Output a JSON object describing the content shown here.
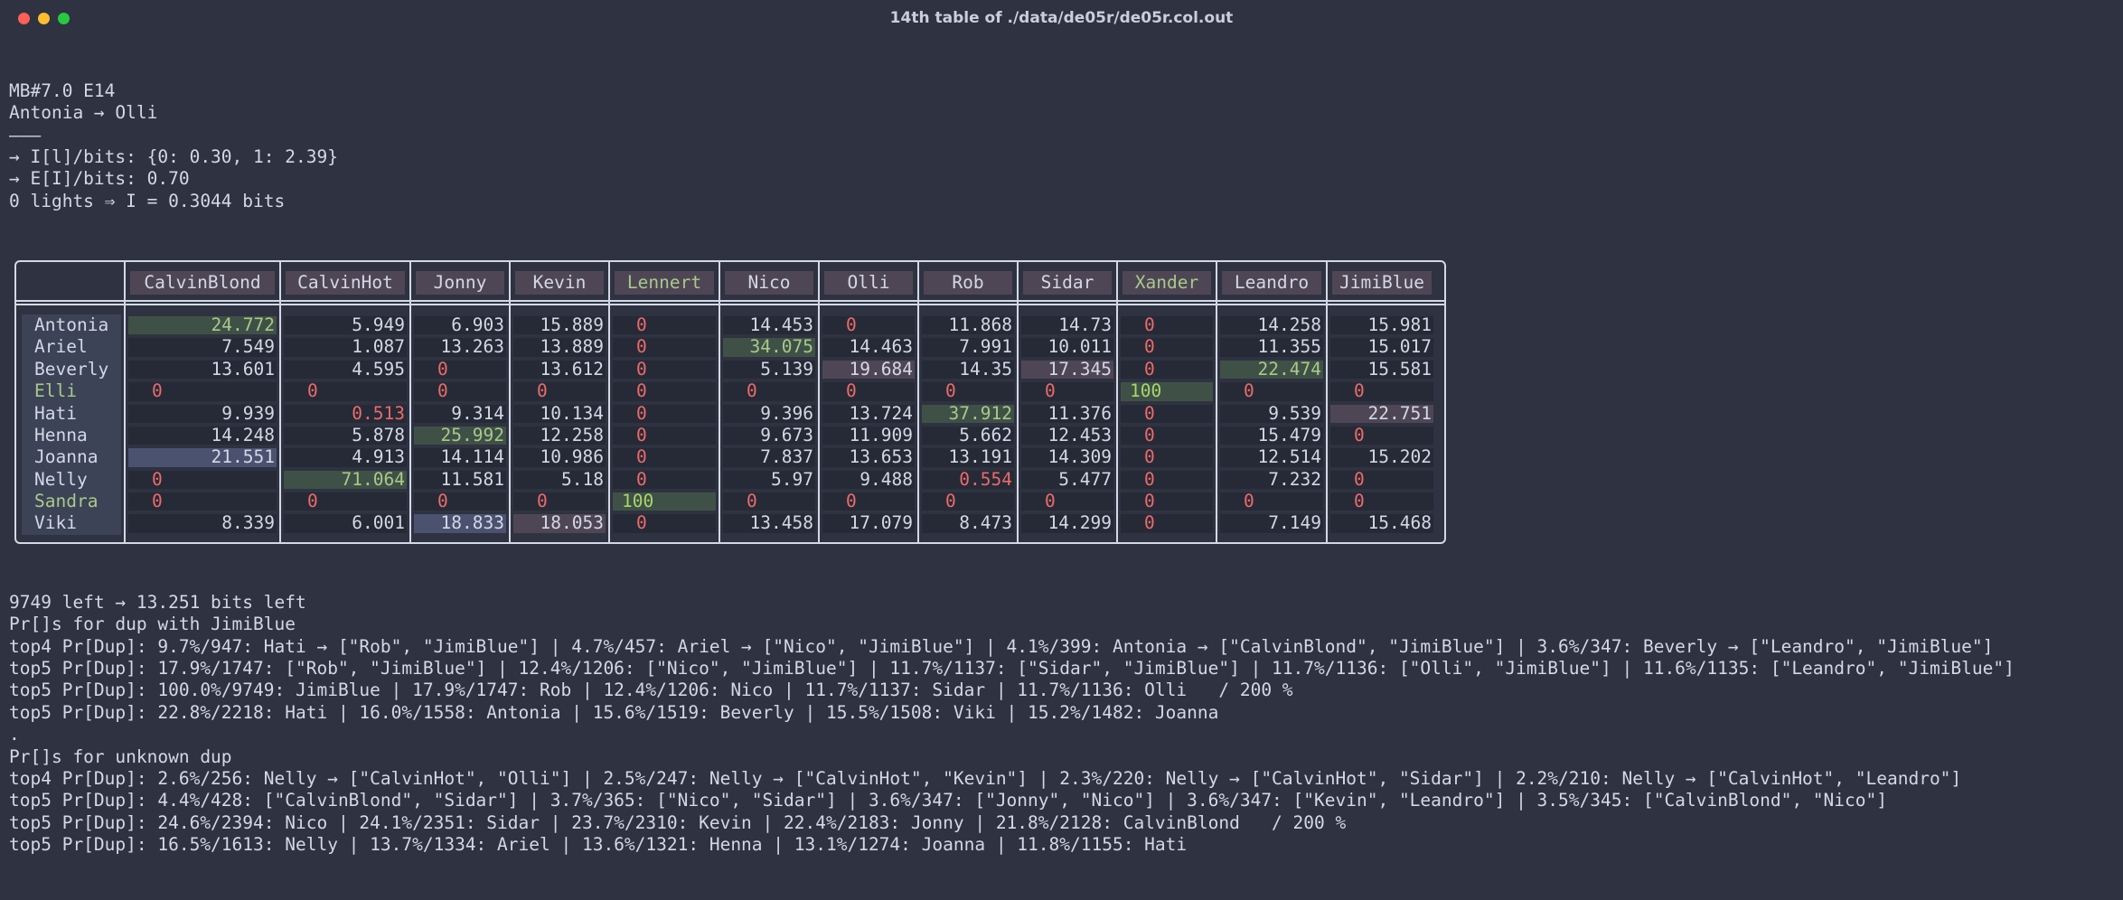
{
  "window": {
    "title": "14th table of ./data/de05r/de05r.col.out"
  },
  "header_lines": [
    "MB#7.0 E14",
    "Antonia → Olli",
    "———",
    "→ I[l]/bits: {0: 0.30, 1: 2.39}",
    "→ E[I]/bits: 0.70",
    "0 lights ⇒ I = 0.3044 bits"
  ],
  "table": {
    "columns": [
      "CalvinBlond",
      "CalvinHot",
      "Jonny",
      "Kevin",
      "Lennert",
      "Nico",
      "Olli",
      "Rob",
      "Sidar",
      "Xander",
      "Leandro",
      "JimiBlue"
    ],
    "green_columns": [
      "Lennert",
      "Xander"
    ],
    "rows": [
      {
        "name": "Antonia",
        "cells": [
          "24.772",
          "5.949",
          "6.903",
          "15.889",
          "0",
          "14.453",
          "0",
          "11.868",
          "14.73",
          "0",
          "14.258",
          "15.981"
        ]
      },
      {
        "name": "Ariel",
        "cells": [
          "7.549",
          "1.087",
          "13.263",
          "13.889",
          "0",
          "34.075",
          "14.463",
          "7.991",
          "10.011",
          "0",
          "11.355",
          "15.017"
        ]
      },
      {
        "name": "Beverly",
        "cells": [
          "13.601",
          "4.595",
          "0",
          "13.612",
          "0",
          "5.139",
          "19.684",
          "14.35",
          "17.345",
          "0",
          "22.474",
          "15.581"
        ]
      },
      {
        "name": "Elli",
        "cells": [
          "0",
          "0",
          "0",
          "0",
          "0",
          "0",
          "0",
          "0",
          "0",
          "100",
          "0",
          "0"
        ]
      },
      {
        "name": "Hati",
        "cells": [
          "9.939",
          "0.513",
          "9.314",
          "10.134",
          "0",
          "9.396",
          "13.724",
          "37.912",
          "11.376",
          "0",
          "9.539",
          "22.751"
        ]
      },
      {
        "name": "Henna",
        "cells": [
          "14.248",
          "5.878",
          "25.992",
          "12.258",
          "0",
          "9.673",
          "11.909",
          "5.662",
          "12.453",
          "0",
          "15.479",
          "0"
        ]
      },
      {
        "name": "Joanna",
        "cells": [
          "21.551",
          "4.913",
          "14.114",
          "10.986",
          "0",
          "7.837",
          "13.653",
          "13.191",
          "14.309",
          "0",
          "12.514",
          "15.202"
        ]
      },
      {
        "name": "Nelly",
        "cells": [
          "0",
          "71.064",
          "11.581",
          "5.18",
          "0",
          "5.97",
          "9.488",
          "0.554",
          "5.477",
          "0",
          "7.232",
          "0"
        ]
      },
      {
        "name": "Sandra",
        "cells": [
          "0",
          "0",
          "0",
          "0",
          "100",
          "0",
          "0",
          "0",
          "0",
          "0",
          "0",
          "0"
        ]
      },
      {
        "name": "Viki",
        "cells": [
          "8.339",
          "6.001",
          "18.833",
          "18.053",
          "0",
          "13.458",
          "17.079",
          "8.473",
          "14.299",
          "0",
          "7.149",
          "15.468"
        ]
      }
    ],
    "green_rows": [
      "Elli",
      "Sandra"
    ],
    "colors": {
      "green_highlight": "#3f5146",
      "blue_highlight": "#4a5270",
      "mauve_highlight": "#4f4655",
      "zero_red": "#ec6a6a"
    }
  },
  "footer_lines": [
    "9749 left → 13.251 bits left",
    "Pr[]s for dup with JimiBlue",
    "top4 Pr[Dup]: 9.7%/947: Hati → [\"Rob\", \"JimiBlue\"] | 4.7%/457: Ariel → [\"Nico\", \"JimiBlue\"] | 4.1%/399: Antonia → [\"CalvinBlond\", \"JimiBlue\"] | 3.6%/347: Beverly → [\"Leandro\", \"JimiBlue\"]",
    "top5 Pr[Dup]: 17.9%/1747: [\"Rob\", \"JimiBlue\"] | 12.4%/1206: [\"Nico\", \"JimiBlue\"] | 11.7%/1137: [\"Sidar\", \"JimiBlue\"] | 11.7%/1136: [\"Olli\", \"JimiBlue\"] | 11.6%/1135: [\"Leandro\", \"JimiBlue\"]",
    "top5 Pr[Dup]: 100.0%/9749: JimiBlue | 17.9%/1747: Rob | 12.4%/1206: Nico | 11.7%/1137: Sidar | 11.7%/1136: Olli   / 200 %",
    "top5 Pr[Dup]: 22.8%/2218: Hati | 16.0%/1558: Antonia | 15.6%/1519: Beverly | 15.5%/1508: Viki | 15.2%/1482: Joanna",
    ".",
    "Pr[]s for unknown dup",
    "top4 Pr[Dup]: 2.6%/256: Nelly → [\"CalvinHot\", \"Olli\"] | 2.5%/247: Nelly → [\"CalvinHot\", \"Kevin\"] | 2.3%/220: Nelly → [\"CalvinHot\", \"Sidar\"] | 2.2%/210: Nelly → [\"CalvinHot\", \"Leandro\"]",
    "top5 Pr[Dup]: 4.4%/428: [\"CalvinBlond\", \"Sidar\"] | 3.7%/365: [\"Nico\", \"Sidar\"] | 3.6%/347: [\"Jonny\", \"Nico\"] | 3.6%/347: [\"Kevin\", \"Leandro\"] | 3.5%/345: [\"CalvinBlond\", \"Nico\"]",
    "top5 Pr[Dup]: 24.6%/2394: Nico | 24.1%/2351: Sidar | 23.7%/2310: Kevin | 22.4%/2183: Jonny | 21.8%/2128: CalvinBlond   / 200 %",
    "top5 Pr[Dup]: 16.5%/1613: Nelly | 13.7%/1334: Ariel | 13.6%/1321: Henna | 13.1%/1274: Joanna | 11.8%/1155: Hati"
  ]
}
